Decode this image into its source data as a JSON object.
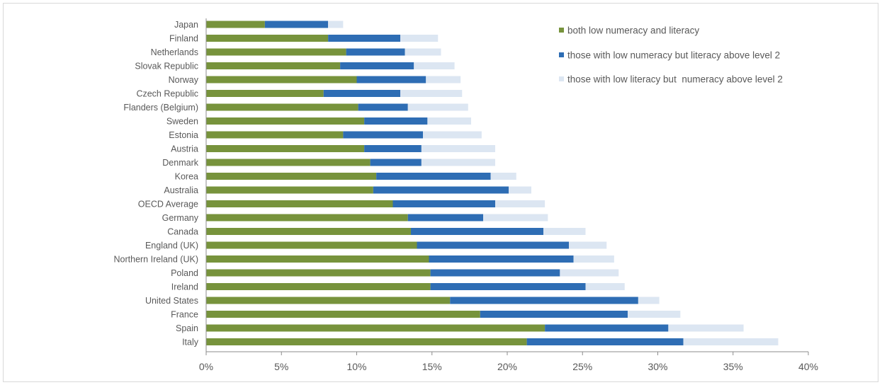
{
  "chart_data": {
    "type": "bar",
    "orientation": "horizontal",
    "stacked": true,
    "categories": [
      "Japan",
      "Finland",
      "Netherlands",
      "Slovak Republic",
      "Norway",
      "Czech Republic",
      "Flanders (Belgium)",
      "Sweden",
      "Estonia",
      "Austria",
      "Denmark",
      "Korea",
      "Australia",
      "OECD Average",
      "Germany",
      "Canada",
      "England (UK)",
      "Northern Ireland (UK)",
      "Poland",
      "Ireland",
      "United States",
      "France",
      "Spain",
      "Italy"
    ],
    "series": [
      {
        "name": "both low numeracy and literacy",
        "color": "#77933c",
        "values": [
          3.9,
          8.1,
          9.3,
          8.9,
          10.0,
          7.8,
          10.1,
          10.5,
          9.1,
          10.5,
          10.9,
          11.3,
          11.1,
          12.4,
          13.4,
          13.6,
          14.0,
          14.8,
          14.9,
          14.9,
          16.2,
          18.2,
          22.5,
          21.3
        ]
      },
      {
        "name": "those with low numeracy but literacy above level 2",
        "color": "#2e6db4",
        "values": [
          4.2,
          4.8,
          3.9,
          4.9,
          4.6,
          5.1,
          3.3,
          4.2,
          5.3,
          3.8,
          3.4,
          7.6,
          9.0,
          6.8,
          5.0,
          8.8,
          10.1,
          9.6,
          8.6,
          10.3,
          12.5,
          9.8,
          8.2,
          10.4
        ]
      },
      {
        "name": "those with low literacy but  numeracy above level 2",
        "color": "#dce6f2",
        "values": [
          1.0,
          2.5,
          2.4,
          2.7,
          2.3,
          4.1,
          4.0,
          2.9,
          3.9,
          4.9,
          4.9,
          1.7,
          1.5,
          3.3,
          4.3,
          2.8,
          2.5,
          2.7,
          3.9,
          2.6,
          1.4,
          3.5,
          5.0,
          6.3
        ]
      }
    ],
    "x_ticks": [
      "0%",
      "5%",
      "10%",
      "15%",
      "20%",
      "25%",
      "30%",
      "35%",
      "40%"
    ],
    "xlim": [
      0,
      40
    ],
    "grid": false,
    "legend_position": "top-right"
  }
}
